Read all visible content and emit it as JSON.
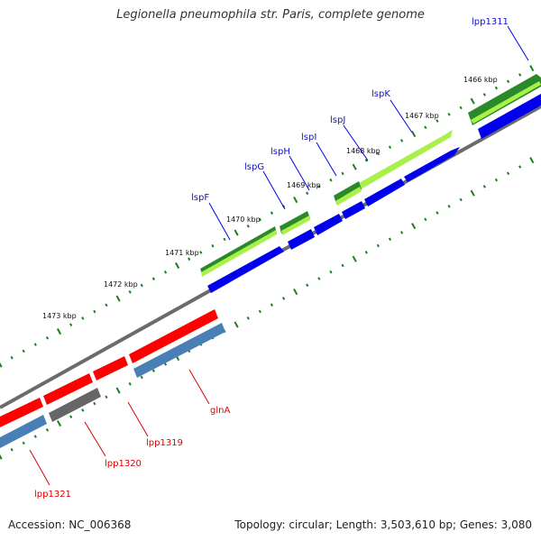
{
  "title": "Legionella pneumophila str. Paris, complete genome",
  "footer": {
    "accession": "Accession: NC_006368",
    "summary": "Topology: circular; Length: 3,503,610 bp; Genes: 3,080"
  },
  "colors": {
    "backbone": "#6b6b6b",
    "tick": "#1a7f1a",
    "blue_gene": "#0000ee",
    "steel_gene": "#4a7fb5",
    "red_gene": "#ff0000",
    "gray_gene": "#666666",
    "green_dark": "#2a8a2a",
    "green_light": "#aaf04a",
    "label_blue": "#1010cc",
    "label_red": "#dd0000"
  },
  "scale_labels": [
    "1466 kbp",
    "1467 kbp",
    "1468 kbp",
    "1469 kbp",
    "1470 kbp",
    "1471 kbp",
    "1472 kbp",
    "1473 kbp"
  ],
  "genes_top": [
    {
      "name": "lpp1311",
      "icon": "label-line"
    },
    {
      "name": "lspK",
      "icon": "label-line"
    },
    {
      "name": "lspJ",
      "icon": "label-line"
    },
    {
      "name": "lspI",
      "icon": "label-line"
    },
    {
      "name": "lspH",
      "icon": "label-line"
    },
    {
      "name": "lspG",
      "icon": "label-line"
    },
    {
      "name": "lspF",
      "icon": "label-line"
    }
  ],
  "genes_bottom": [
    {
      "name": "glnA",
      "icon": "label-line"
    },
    {
      "name": "lpp1319",
      "icon": "label-line"
    },
    {
      "name": "lpp1320",
      "icon": "label-line"
    },
    {
      "name": "lpp1321",
      "icon": "label-line"
    }
  ]
}
